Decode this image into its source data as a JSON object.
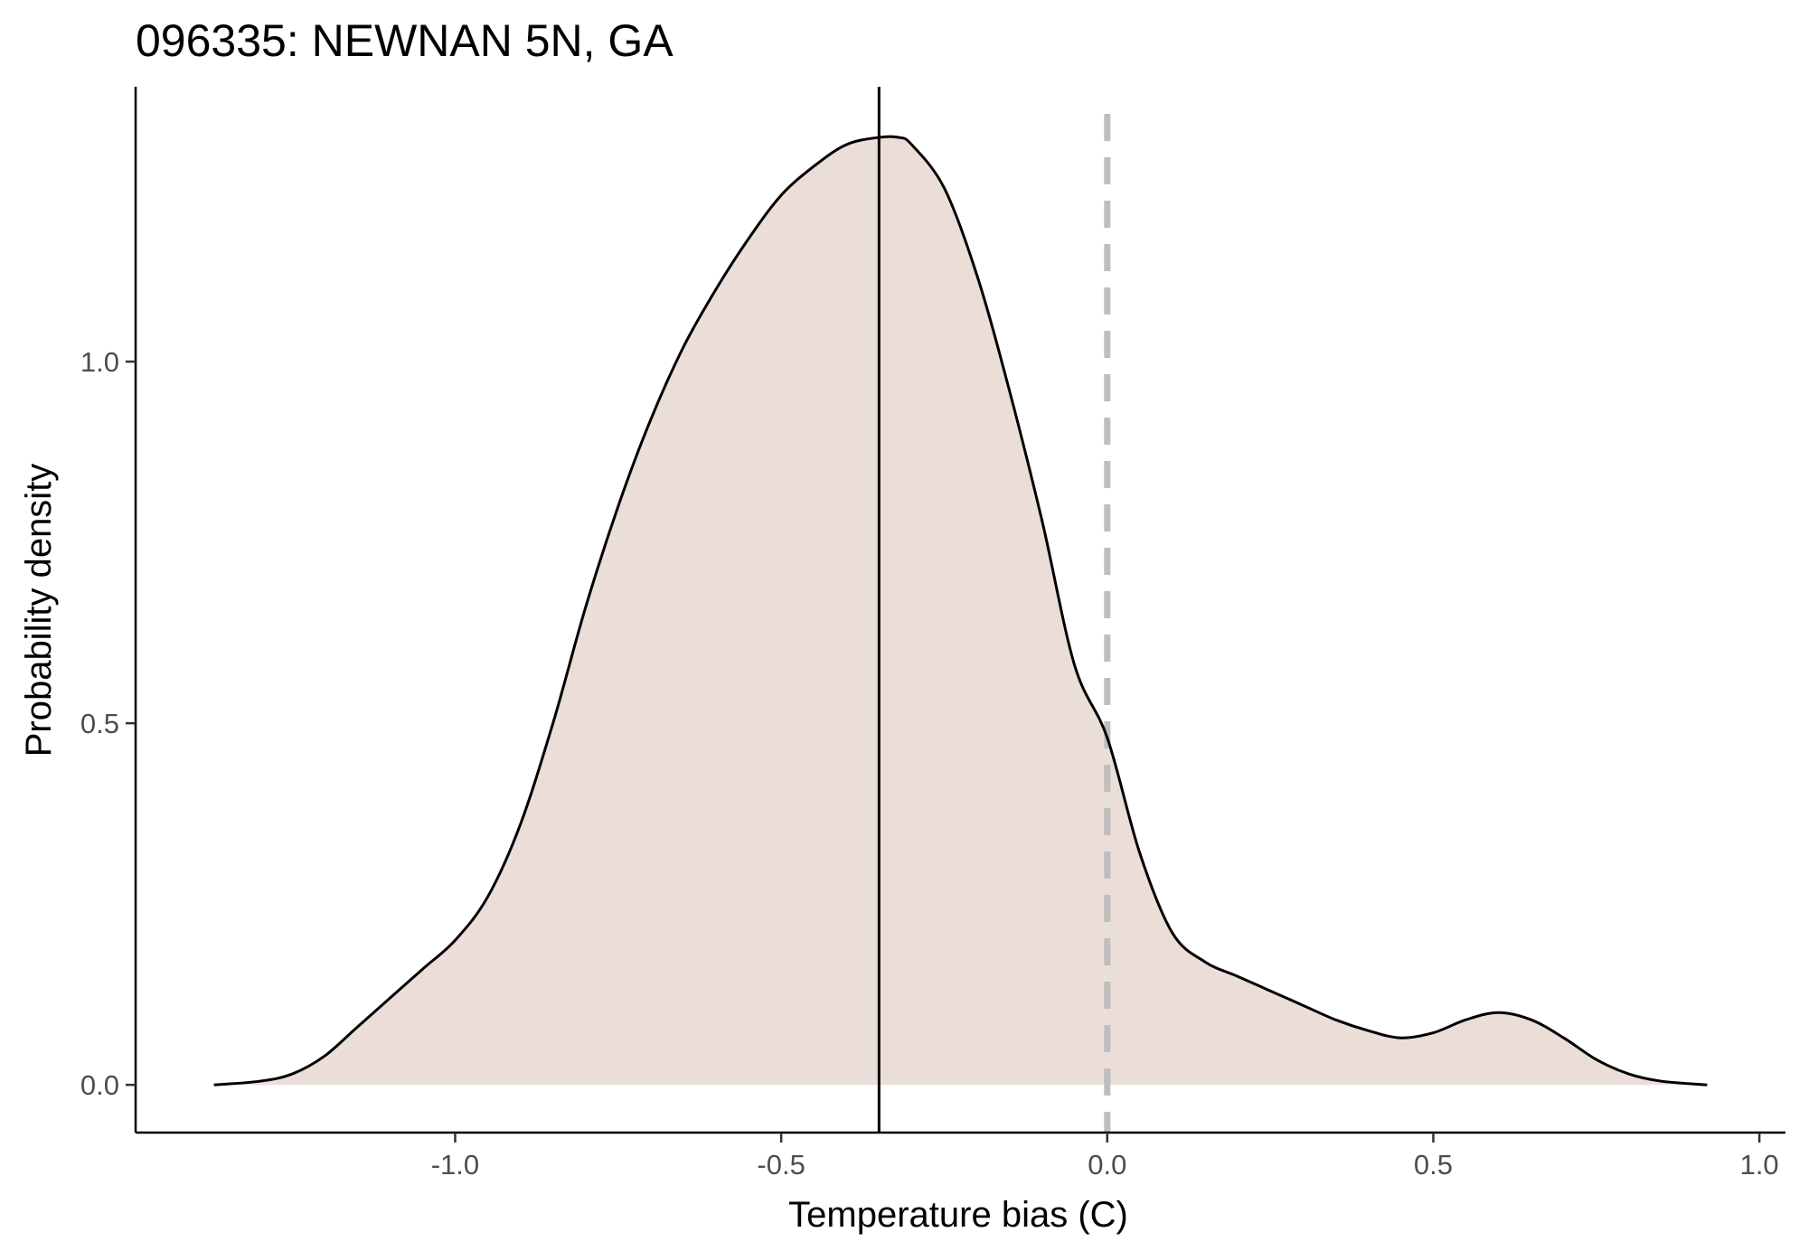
{
  "chart_data": {
    "type": "area",
    "title": "096335: NEWNAN 5N, GA",
    "xlabel": "Temperature bias (C)",
    "ylabel": "Probability density",
    "xlim": [
      -1.49,
      1.04
    ],
    "ylim": [
      -0.066,
      1.38
    ],
    "x_ticks": [
      -1.0,
      -0.5,
      0.0,
      0.5,
      1.0
    ],
    "x_tick_labels": [
      "-1.0",
      "-0.5",
      "0.0",
      "0.5",
      "1.0"
    ],
    "y_ticks": [
      0.0,
      0.5,
      1.0
    ],
    "y_tick_labels": [
      "0.0",
      "0.5",
      "1.0"
    ],
    "grid": false,
    "legend": "none",
    "fill_color": "#ebddd8",
    "line_color": "#000000",
    "mean_line": {
      "x": -0.35,
      "style": "solid",
      "color": "#000000"
    },
    "zero_line": {
      "x": 0.0,
      "style": "dashed",
      "color": "#bebebe"
    },
    "series": [
      {
        "x": [
          -1.37,
          -1.3,
          -1.25,
          -1.2,
          -1.15,
          -1.1,
          -1.05,
          -1.0,
          -0.95,
          -0.9,
          -0.85,
          -0.8,
          -0.75,
          -0.7,
          -0.65,
          -0.6,
          -0.55,
          -0.5,
          -0.45,
          -0.4,
          -0.35,
          -0.32,
          -0.3,
          -0.25,
          -0.2,
          -0.15,
          -0.1,
          -0.05,
          0.0,
          0.05,
          0.1,
          0.15,
          0.2,
          0.25,
          0.3,
          0.35,
          0.4,
          0.45,
          0.5,
          0.55,
          0.6,
          0.65,
          0.7,
          0.75,
          0.8,
          0.85,
          0.92
        ],
        "y": [
          0.0,
          0.005,
          0.015,
          0.04,
          0.08,
          0.12,
          0.16,
          0.2,
          0.26,
          0.36,
          0.5,
          0.66,
          0.8,
          0.92,
          1.02,
          1.1,
          1.17,
          1.23,
          1.27,
          1.3,
          1.31,
          1.31,
          1.3,
          1.24,
          1.12,
          0.96,
          0.78,
          0.58,
          0.48,
          0.32,
          0.21,
          0.17,
          0.15,
          0.13,
          0.11,
          0.09,
          0.075,
          0.065,
          0.072,
          0.09,
          0.1,
          0.09,
          0.065,
          0.035,
          0.015,
          0.005,
          0.0
        ]
      }
    ]
  }
}
